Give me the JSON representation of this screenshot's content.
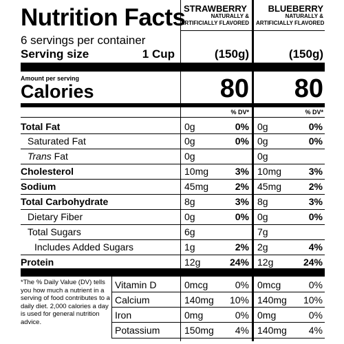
{
  "header": {
    "title": "Nutrition Facts",
    "servings_per_container": "6 servings per container",
    "serving_size_label": "Serving size",
    "serving_size_value": "1 Cup"
  },
  "products": [
    {
      "name": "STRAWBERRY",
      "flavor_line1": "NATURALLY &",
      "flavor_line2": "ARTIFICIALLY FLAVORED",
      "serving_grams": "(150g)",
      "calories": "80",
      "dv_header": "% DV*"
    },
    {
      "name": "BLUEBERRY",
      "flavor_line1": "NATURALLY &",
      "flavor_line2": "ARTIFICIALLY FLAVORED",
      "serving_grams": "(150g)",
      "calories": "80",
      "dv_header": "% DV*"
    }
  ],
  "calories_block": {
    "amount_per_serving": "Amount per serving",
    "calories_label": "Calories"
  },
  "nutrients": [
    {
      "label": "Total Fat",
      "v1": "0g",
      "p1": "0%",
      "v2": "0g",
      "p2": "0%"
    },
    {
      "label": "Saturated Fat",
      "v1": "0g",
      "p1": "0%",
      "v2": "0g",
      "p2": "0%"
    },
    {
      "label_italic": "Trans",
      "label_rest": " Fat",
      "v1": "0g",
      "v2": "0g"
    },
    {
      "label": "Cholesterol",
      "v1": "10mg",
      "p1": "3%",
      "v2": "10mg",
      "p2": "3%"
    },
    {
      "label": "Sodium",
      "v1": "45mg",
      "p1": "2%",
      "v2": "45mg",
      "p2": "2%"
    },
    {
      "label": "Total Carbohydrate",
      "v1": "8g",
      "p1": "3%",
      "v2": "8g",
      "p2": "3%"
    },
    {
      "label": "Dietary Fiber",
      "v1": "0g",
      "p1": "0%",
      "v2": "0g",
      "p2": "0%"
    },
    {
      "label": "Total Sugars",
      "v1": "6g",
      "v2": "7g"
    },
    {
      "label": "Includes Added Sugars",
      "v1": "1g",
      "p1": "2%",
      "v2": "2g",
      "p2": "4%"
    },
    {
      "label": "Protein",
      "v1": "12g",
      "p1": "24%",
      "v2": "12g",
      "p2": "24%"
    }
  ],
  "footnote": "*The % Daily Value (DV) tells you how much a nutrient in a serving of food contributes to a daily diet. 2,000 calories a day is used for general nutrition advice.",
  "vitamins": [
    {
      "label": "Vitamin D",
      "v1": "0mcg",
      "p1": "0%",
      "v2": "0mcg",
      "p2": "0%"
    },
    {
      "label": "Calcium",
      "v1": "140mg",
      "p1": "10%",
      "v2": "140mg",
      "p2": "10%"
    },
    {
      "label": "Iron",
      "v1": "0mg",
      "p1": "0%",
      "v2": "0mg",
      "p2": "0%"
    },
    {
      "label": "Potassium",
      "v1": "150mg",
      "p1": "4%",
      "v2": "140mg",
      "p2": "4%"
    }
  ]
}
